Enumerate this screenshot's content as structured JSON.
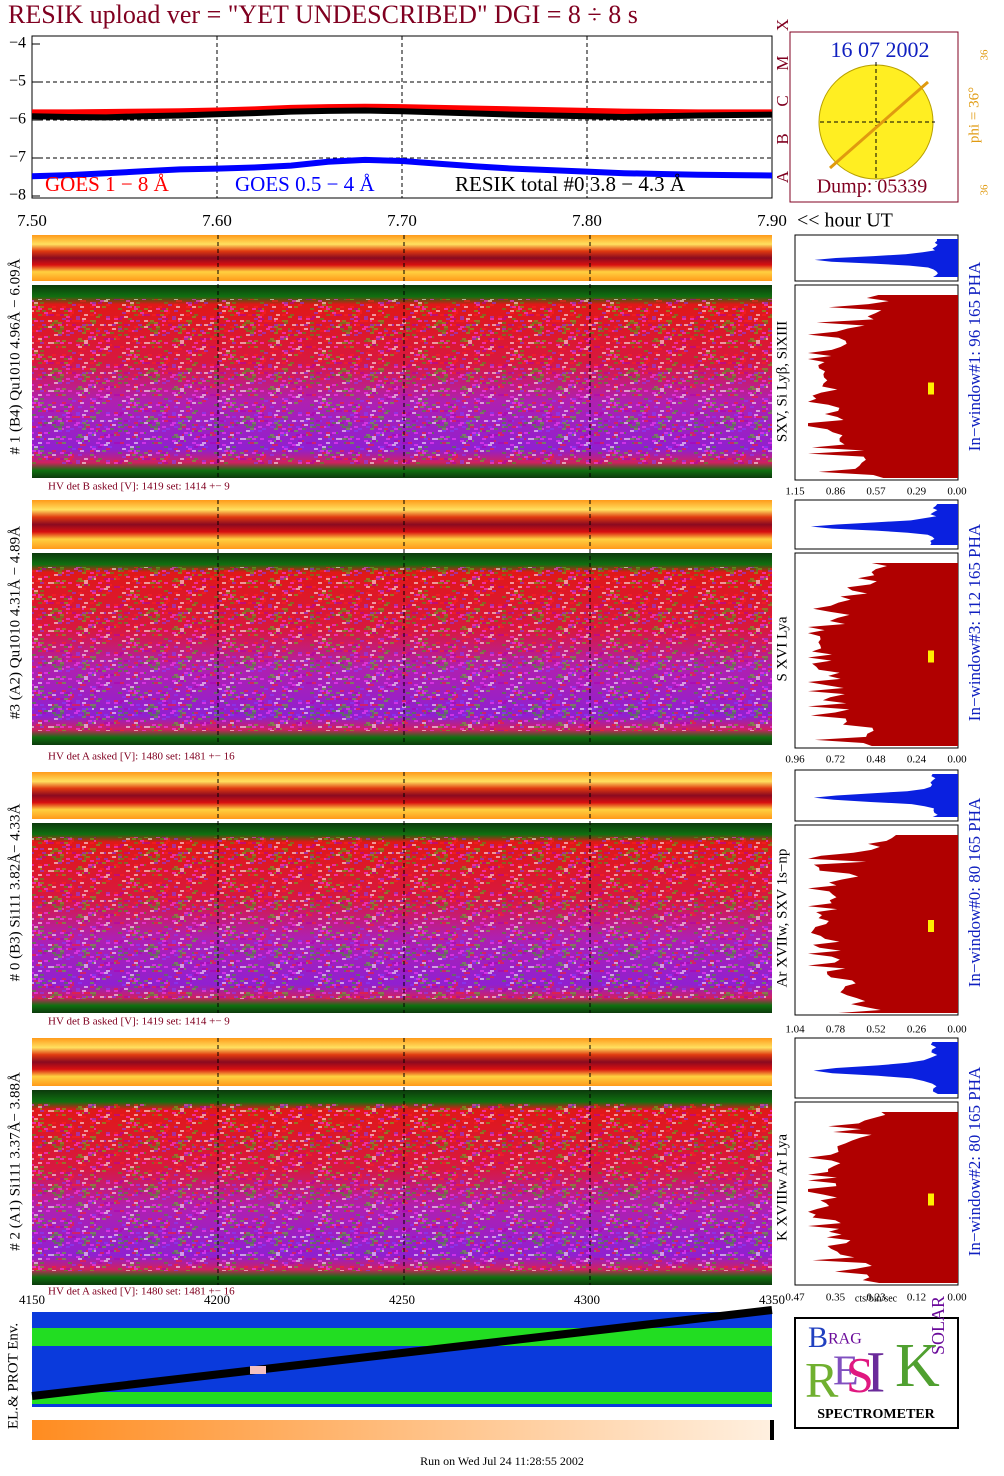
{
  "title": "RESIK upload ver = \"YET UNDESCRIBED\"  DGI =   8 ÷   8 s",
  "chart_data": {
    "type": "line",
    "xlabel": "<< hour UT",
    "x": [
      7.5,
      7.52,
      7.54,
      7.56,
      7.58,
      7.6,
      7.62,
      7.64,
      7.66,
      7.68,
      7.7,
      7.72,
      7.74,
      7.76,
      7.78,
      7.8,
      7.82,
      7.84,
      7.86,
      7.88,
      7.9
    ],
    "series": [
      {
        "name": "GOES 1 − 8 Å",
        "color": "#ff0000",
        "values": [
          -5.8,
          -5.8,
          -5.79,
          -5.78,
          -5.77,
          -5.75,
          -5.72,
          -5.68,
          -5.66,
          -5.65,
          -5.66,
          -5.68,
          -5.7,
          -5.72,
          -5.74,
          -5.76,
          -5.78,
          -5.79,
          -5.8,
          -5.8,
          -5.8
        ]
      },
      {
        "name": "GOES 0.5 − 4 Å",
        "color": "#0000ff",
        "values": [
          -7.48,
          -7.45,
          -7.4,
          -7.35,
          -7.3,
          -7.28,
          -7.25,
          -7.2,
          -7.1,
          -7.05,
          -7.08,
          -7.15,
          -7.22,
          -7.28,
          -7.32,
          -7.36,
          -7.4,
          -7.42,
          -7.44,
          -7.45,
          -7.46
        ]
      },
      {
        "name": "RESIK total #0  3.8 − 4.3 Å",
        "color": "#000000",
        "values": [
          -5.9,
          -5.92,
          -5.93,
          -5.9,
          -5.88,
          -5.85,
          -5.82,
          -5.78,
          -5.76,
          -5.75,
          -5.77,
          -5.8,
          -5.83,
          -5.86,
          -5.88,
          -5.9,
          -5.92,
          -5.9,
          -5.88,
          -5.87,
          -5.86
        ]
      }
    ],
    "xlim": [
      7.5,
      7.9
    ],
    "xticks": [
      {
        "value": 7.5,
        "label": "7.50"
      },
      {
        "value": 7.6,
        "label": "7.60"
      },
      {
        "value": 7.7,
        "label": "7.70"
      },
      {
        "value": 7.8,
        "label": "7.80"
      },
      {
        "value": 7.9,
        "label": "7.90"
      }
    ],
    "ylim": [
      -8,
      -4
    ],
    "yticks": [
      {
        "value": -8,
        "label": "−8"
      },
      {
        "value": -7,
        "label": "−7"
      },
      {
        "value": -6,
        "label": "−6"
      },
      {
        "value": -5,
        "label": "−5"
      },
      {
        "value": -4,
        "label": "−4"
      }
    ],
    "grid": true,
    "classes": [
      "A",
      "B",
      "C",
      "M",
      "X"
    ]
  },
  "sun": {
    "date": "16 07 2002",
    "dump": "Dump: 05339",
    "phi": "phi = 36°",
    "angle_top": "36",
    "angle_bottom": "36"
  },
  "panels": [
    {
      "label": "# 1 (B4) Qu1010 4.96Å − 6.09Å",
      "lines": "SXV, Si Lyβ, SiXIII",
      "window": "In−window#1:   96 165  PHA",
      "hv": "HV det B asked [V]:  1419 set:  1414  +−    9",
      "pha_ticks": [
        "1.15",
        "0.86",
        "0.57",
        "0.29",
        "0.00"
      ]
    },
    {
      "label": "#3 (A2) Qu1010  4.31Å − 4.89Å",
      "lines": "S XVI Lya",
      "window": "In−window#3:  112 165  PHA",
      "hv": "HV det A asked [V]:  1480 set:  1481  +−    16",
      "pha_ticks": [
        "0.96",
        "0.72",
        "0.48",
        "0.24",
        "0.00"
      ]
    },
    {
      "label": "# 0 (B3) Si111  3.82Å− 4.33Å",
      "lines": "Ar XVIIw, SXV 1s−np",
      "window": "In−window#0:   80 165  PHA",
      "hv": "HV det B asked [V]:  1419 set:  1414  +−    9",
      "pha_ticks": [
        "1.04",
        "0.78",
        "0.52",
        "0.26",
        "0.00"
      ]
    },
    {
      "label": "# 2 (A1) Si111  3.37Å− 3.88Å",
      "lines": "K XVIIIw  Ar Lya",
      "window": "In−window#2:   80 165  PHA",
      "hv": "HV det A asked [V]:  1480 set:  1481  +−    16",
      "pha_ticks": [
        "0.47",
        "0.35",
        "0.23",
        "0.12",
        "0.00"
      ]
    }
  ],
  "wavelength_ticks": [
    "4150",
    "4200",
    "4250",
    "4300",
    "4350"
  ],
  "pha_unit": "cts/bin/sec",
  "env_label": "EL.& PROT Env.",
  "logo": {
    "letters": [
      "B",
      "RAG",
      "R",
      "E",
      "S",
      "I",
      "K",
      "SOLAR"
    ],
    "subtitle": "SPECTROMETER"
  },
  "footer": "Run on Wed Jul 24 11:28:55 2002"
}
